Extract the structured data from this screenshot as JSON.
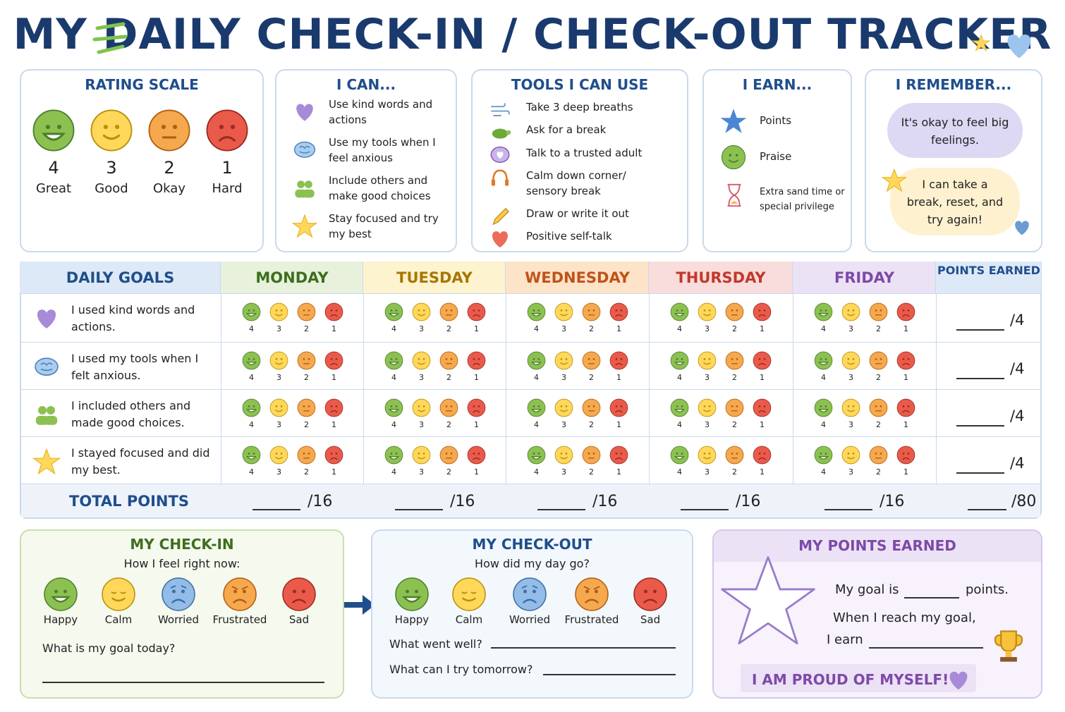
{
  "title": "MY DAILY CHECK-IN / CHECK-OUT TRACKER",
  "rating_scale": {
    "title": "RATING SCALE",
    "items": [
      {
        "number": 4,
        "label": "Great"
      },
      {
        "number": 3,
        "label": "Good"
      },
      {
        "number": 2,
        "label": "Okay"
      },
      {
        "number": 1,
        "label": "Hard"
      }
    ]
  },
  "i_can": {
    "title": "I CAN...",
    "items": [
      "Use kind words and actions",
      "Use my tools when I feel anxious",
      "Include others and make good choices",
      "Stay focused and try my best"
    ]
  },
  "tools": {
    "title": "TOOLS I CAN USE",
    "items": [
      "Take 3 deep breaths",
      "Ask for a break",
      "Talk to a trusted adult",
      "Calm down corner/ sensory break",
      "Draw or write it out",
      "Positive self-talk"
    ]
  },
  "i_earn": {
    "title": "I EARN...",
    "items": [
      "Points",
      "Praise",
      "Extra sand time or special privilege"
    ]
  },
  "i_remember": {
    "title": "I REMEMBER...",
    "notes": [
      "It's okay to feel big feelings.",
      "I can take a break, reset, and try again!"
    ]
  },
  "table": {
    "goal_header": "DAILY GOALS",
    "days": [
      "MONDAY",
      "TUESDAY",
      "WEDNESDAY",
      "THURSDAY",
      "FRIDAY"
    ],
    "points_header": "POINTS EARNED",
    "goals": [
      "I used kind words and actions.",
      "I used my tools when I felt anxious.",
      "I included others and made good choices.",
      "I stayed focused and did my best."
    ],
    "scale": [
      "4",
      "3",
      "2",
      "1"
    ],
    "row_max": "/4",
    "total_label": "TOTAL POINTS",
    "day_total": "/16",
    "grand_total": "/80"
  },
  "check_in": {
    "title": "MY CHECK-IN",
    "prompt": "How I feel right now:",
    "feelings": [
      "Happy",
      "Calm",
      "Worried",
      "Frustrated",
      "Sad"
    ],
    "question": "What is my goal today?"
  },
  "check_out": {
    "title": "MY CHECK-OUT",
    "prompt": "How did my day go?",
    "feelings": [
      "Happy",
      "Calm",
      "Worried",
      "Frustrated",
      "Sad"
    ],
    "questions": [
      "What went well?",
      "What can I try tomorrow?"
    ]
  },
  "points_earned": {
    "title": "MY POINTS EARNED",
    "goal_before": "My goal is",
    "goal_after": "points.",
    "reach": "When I reach my goal,",
    "earn": "I earn",
    "proud": "I AM PROUD OF MYSELF!"
  }
}
